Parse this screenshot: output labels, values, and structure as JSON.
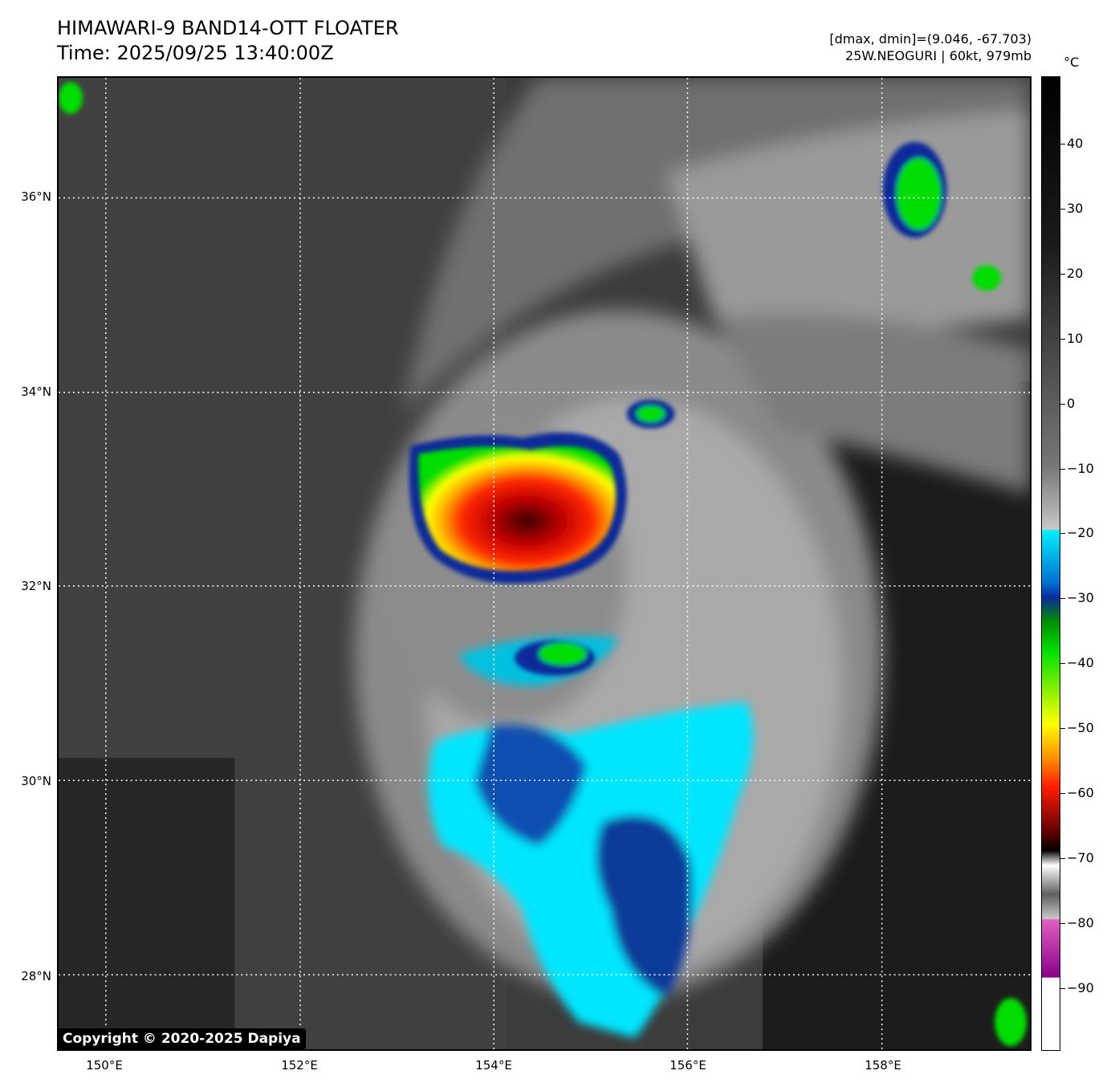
{
  "header": {
    "title_line1": "HIMAWARI-9 BAND14-OTT FLOATER",
    "title_line2": "Time: 2025/09/25 13:40:00Z",
    "meta_line1": "[dmax, dmin]=(9.046, -67.703)",
    "meta_line2": "25W.NEOGURI | 60kt, 979mb"
  },
  "map": {
    "lat_labels": [
      "36°N",
      "34°N",
      "32°N",
      "30°N",
      "28°N"
    ],
    "lon_labels": [
      "150°E",
      "152°E",
      "154°E",
      "156°E",
      "158°E"
    ],
    "grid": "dotted white"
  },
  "colorbar": {
    "unit": "°C",
    "tick_labels": [
      "40",
      "30",
      "20",
      "10",
      "0",
      "−10",
      "−20",
      "−30",
      "−40",
      "−50",
      "−60",
      "−70",
      "−80",
      "−90"
    ],
    "colors": {
      "gray_warm": "#000000",
      "gray_cold": "#c8c8c8",
      "cyan": "#00f0ff",
      "blue": "#0a2a9a",
      "green": "#00e000",
      "yellow": "#ffff00",
      "red": "#ff1a00",
      "dark_red": "#500000",
      "pink": "#e060c0",
      "purple": "#8a008a"
    }
  },
  "footer": {
    "copyright": "Copyright © 2020-2025 Dapiya"
  }
}
